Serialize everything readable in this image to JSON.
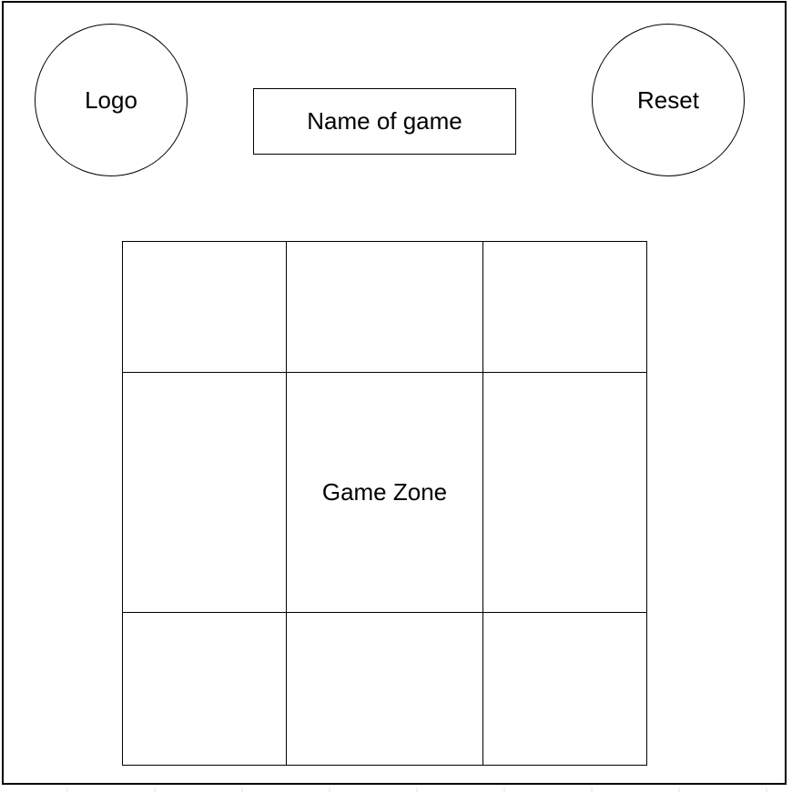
{
  "header": {
    "logo_label": "Logo",
    "title_label": "Name of game",
    "reset_label": "Reset"
  },
  "game_zone": {
    "center_label": "Game Zone",
    "cells": [
      "",
      "",
      "",
      "",
      "Game Zone",
      "",
      "",
      "",
      ""
    ]
  },
  "colors": {
    "stroke": "#000000",
    "background": "#ffffff"
  }
}
